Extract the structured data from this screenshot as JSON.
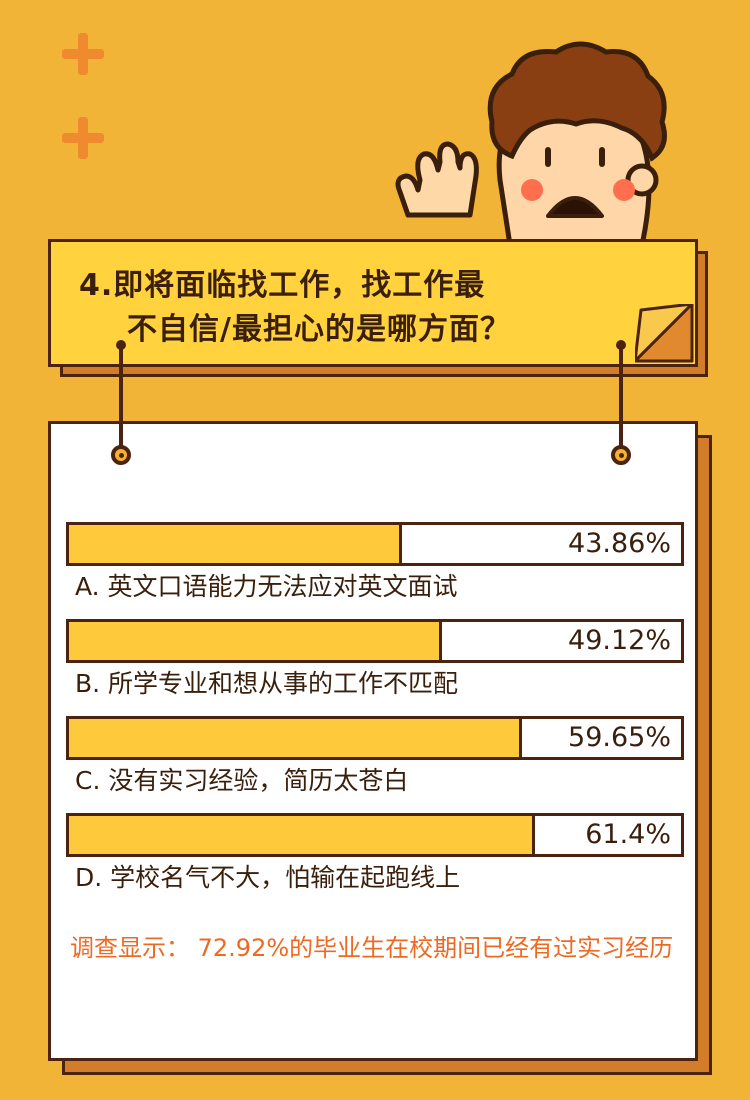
{
  "title": {
    "line1": "4.即将面临找工作，找工作最",
    "line2": "不自信/最担心的是哪方面？"
  },
  "chart_data": {
    "type": "bar",
    "orientation": "horizontal",
    "value_max": 100,
    "categories": [
      "A. 英文口语能力无法应对英文面试",
      "B. 所学专业和想从事的工作不匹配",
      "C. 没有实习经验，简历太苍白",
      "D. 学校名气不大，怕输在起跑线上"
    ],
    "values": [
      43.86,
      49.12,
      59.65,
      61.4
    ],
    "value_labels": [
      "43.86%",
      "49.12%",
      "59.65%",
      "61.4%"
    ]
  },
  "note": {
    "prefix": "调查显示：",
    "text": "72.92%的毕业生在校期间已经有过实习经历"
  },
  "colors": {
    "background": "#f2b437",
    "bar": "#ffc93c",
    "outline": "#4a2410",
    "accent": "#ee6a23",
    "plus": "#f08a2e"
  }
}
